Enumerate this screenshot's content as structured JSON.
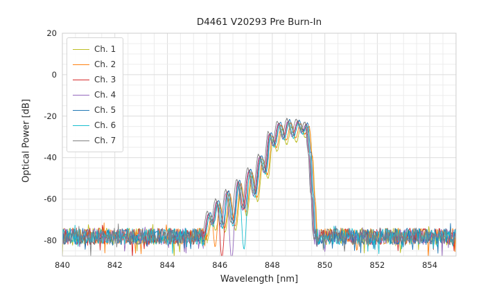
{
  "figure": {
    "title": "D4461 V20293 Pre Burn-In",
    "xlabel": "Wavelength [nm]",
    "ylabel": "Optical Power [dB]"
  },
  "chart_data": {
    "type": "line",
    "title": "D4461 V20293 Pre Burn-In",
    "xlabel": "Wavelength [nm]",
    "ylabel": "Optical Power [dB]",
    "xlim": [
      840,
      855
    ],
    "ylim": [
      -87.5,
      20
    ],
    "xticks": [
      840,
      842,
      844,
      846,
      848,
      850,
      852,
      854
    ],
    "yticks": [
      20,
      0,
      -20,
      -40,
      -60,
      -80
    ],
    "grid": {
      "on": true,
      "minor_x_step": 0.5,
      "minor_y_step": 5,
      "major_x_step": 2,
      "major_y_step": 20,
      "minor_color": "#ececec",
      "major_color": "#dcdcdc",
      "frame_color": "#cccccc"
    },
    "legend": {
      "position": "upper left",
      "labels": [
        "Ch. 1",
        "Ch. 2",
        "Ch. 3",
        "Ch. 4",
        "Ch. 5",
        "Ch. 6",
        "Ch. 7"
      ]
    },
    "noise_floor": {
      "mean_db": -78,
      "half_range_db": 4,
      "spike_db": 7
    },
    "envelope_db": [
      [
        845.42,
        -77
      ],
      [
        845.6,
        -67
      ],
      [
        845.74,
        -72
      ],
      [
        845.92,
        -61
      ],
      [
        846.1,
        -73
      ],
      [
        846.3,
        -56.5
      ],
      [
        846.5,
        -72
      ],
      [
        846.72,
        -51.5
      ],
      [
        846.92,
        -65
      ],
      [
        847.14,
        -46
      ],
      [
        847.34,
        -58
      ],
      [
        847.55,
        -39.5
      ],
      [
        847.74,
        -47
      ],
      [
        847.92,
        -28.5
      ],
      [
        848.08,
        -34
      ],
      [
        848.27,
        -23.5
      ],
      [
        848.45,
        -30.5
      ],
      [
        848.63,
        -22.3
      ],
      [
        848.81,
        -29.5
      ],
      [
        848.99,
        -22.6
      ],
      [
        849.16,
        -27.5
      ],
      [
        849.32,
        -23.8
      ],
      [
        849.44,
        -38
      ],
      [
        849.54,
        -58
      ],
      [
        849.63,
        -77
      ]
    ],
    "series": [
      {
        "name": "Ch. 1",
        "color": "#bcbd22",
        "dx": 0.1,
        "dy": -3.0,
        "notches": []
      },
      {
        "name": "Ch. 2",
        "color": "#ff7f0e",
        "dx": 0.08,
        "dy": -1.0,
        "notches": [
          [
            845.74,
            -82
          ]
        ]
      },
      {
        "name": "Ch. 3",
        "color": "#d62728",
        "dx": -0.02,
        "dy": 0.0,
        "notches": [
          [
            846.1,
            -88
          ]
        ]
      },
      {
        "name": "Ch. 4",
        "color": "#9467bd",
        "dx": -0.05,
        "dy": -0.5,
        "notches": [
          [
            846.5,
            -88
          ]
        ]
      },
      {
        "name": "Ch. 5",
        "color": "#1f77b4",
        "dx": 0.03,
        "dy": 0.5,
        "notches": []
      },
      {
        "name": "Ch. 6",
        "color": "#17becf",
        "dx": 0.0,
        "dy": -1.0,
        "notches": [
          [
            846.92,
            -83
          ]
        ]
      },
      {
        "name": "Ch. 7",
        "color": "#7f7f7f",
        "dx": -0.08,
        "dy": 1.0,
        "notches": []
      }
    ]
  }
}
